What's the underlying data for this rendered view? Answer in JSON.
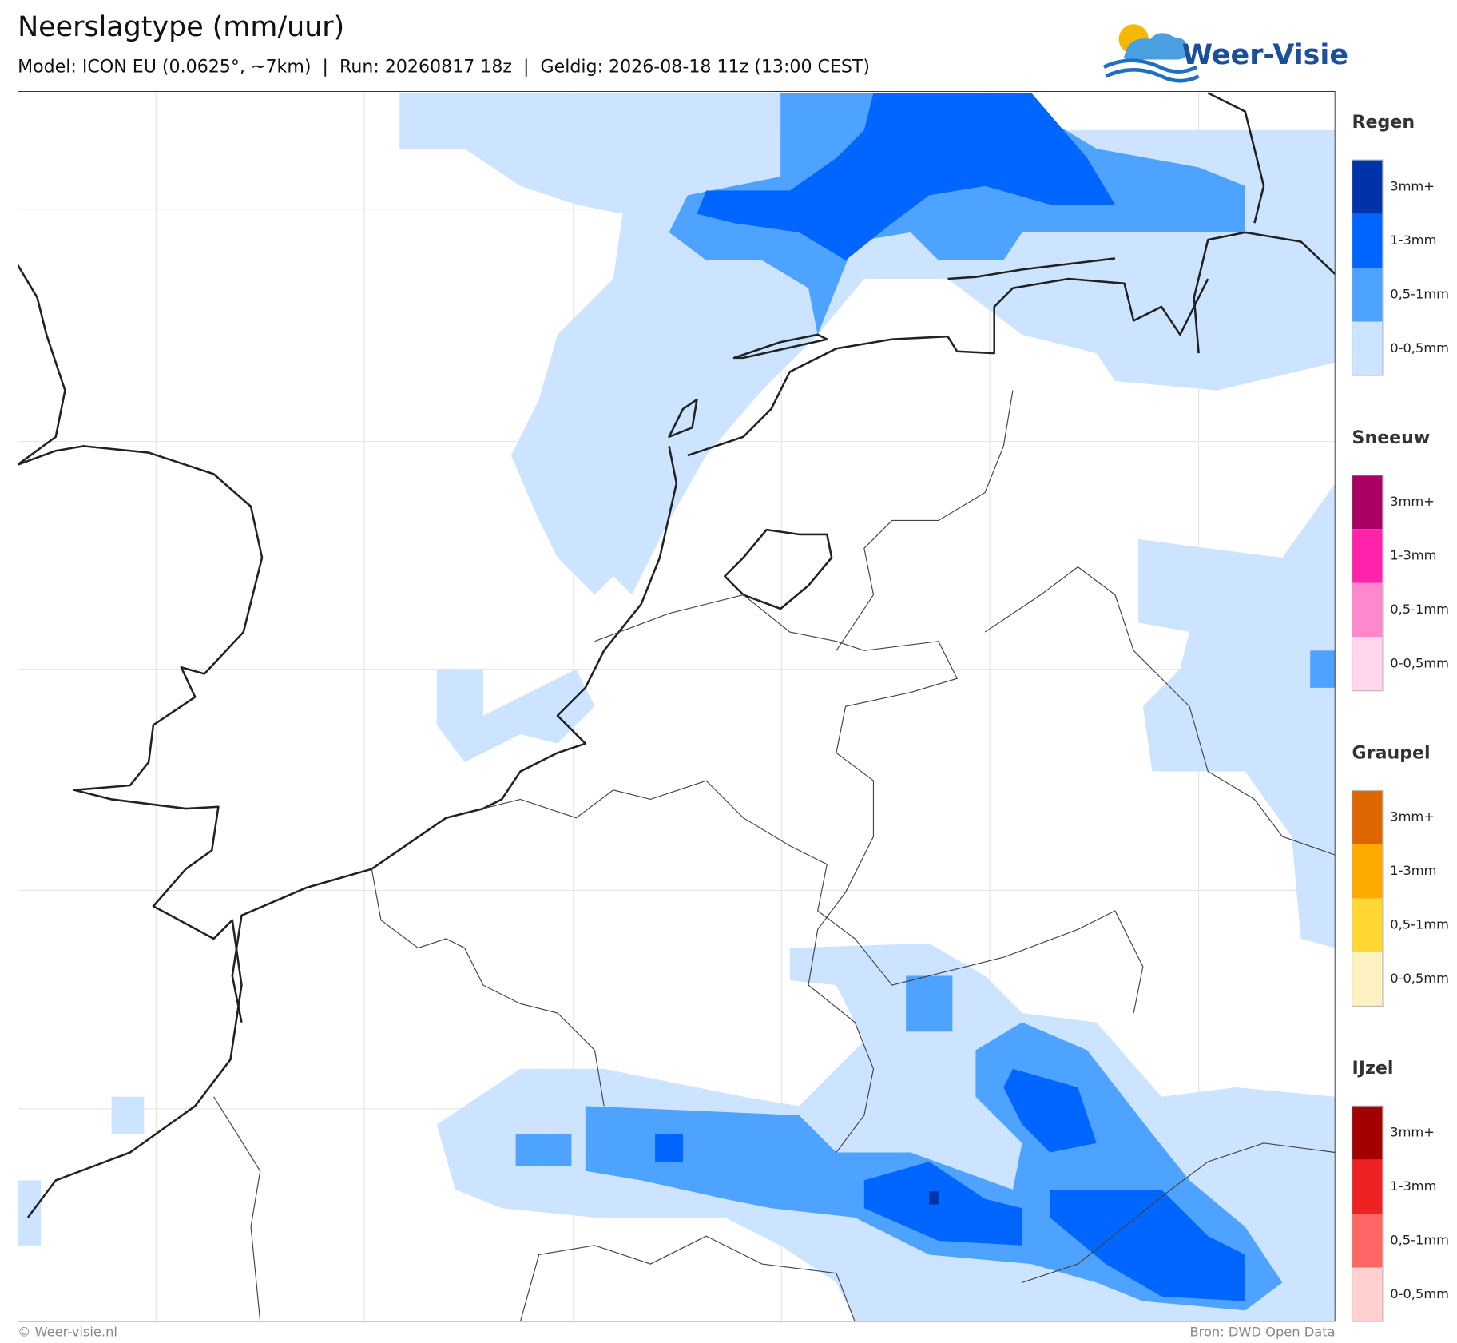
{
  "header": {
    "title": "Neerslagtype (mm/uur)",
    "subtitle": "Model: ICON EU (0.0625°, ~7km)  |  Run: 20260817 18z  |  Geldig: 2026-08-18 11z (13:00 CEST)"
  },
  "logo": {
    "text": "Weer-Visie"
  },
  "legend": {
    "groups": [
      {
        "name": "Regen",
        "items": [
          {
            "label": "3mm+",
            "color": "#0033aa"
          },
          {
            "label": "1-3mm",
            "color": "#0066ff"
          },
          {
            "label": "0,5-1mm",
            "color": "#4da3ff"
          },
          {
            "label": "0-0,5mm",
            "color": "#cce4ff"
          }
        ]
      },
      {
        "name": "Sneeuw",
        "items": [
          {
            "label": "3mm+",
            "color": "#aa0066"
          },
          {
            "label": "1-3mm",
            "color": "#ff22aa"
          },
          {
            "label": "0,5-1mm",
            "color": "#ff88cc"
          },
          {
            "label": "0-0,5mm",
            "color": "#ffd6ee"
          }
        ]
      },
      {
        "name": "Graupel",
        "items": [
          {
            "label": "3mm+",
            "color": "#dd6600"
          },
          {
            "label": "1-3mm",
            "color": "#ffaa00"
          },
          {
            "label": "0,5-1mm",
            "color": "#ffd633"
          },
          {
            "label": "0-0,5mm",
            "color": "#fff2c2"
          }
        ]
      },
      {
        "name": "IJzel",
        "items": [
          {
            "label": "3mm+",
            "color": "#a30000"
          },
          {
            "label": "1-3mm",
            "color": "#ee2222"
          },
          {
            "label": "0,5-1mm",
            "color": "#ff6666"
          },
          {
            "label": "0-0,5mm",
            "color": "#ffd0d0"
          }
        ]
      }
    ]
  },
  "footer": {
    "left": "© Weer-visie.nl",
    "right": "Bron: DWD Open Data"
  }
}
